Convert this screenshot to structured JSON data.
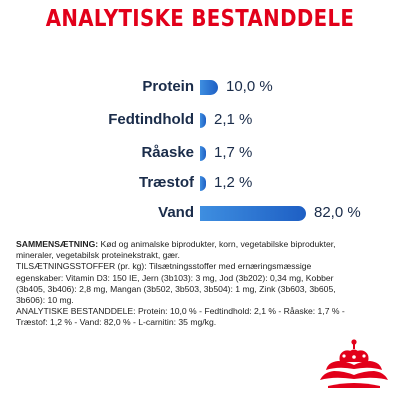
{
  "title": "ANALYTISKE BESTANDDELE",
  "colors": {
    "title": "#e2001a",
    "bar_light": "#3e8ee0",
    "bar_dark": "#1e5fc4",
    "label": "#1a2c4a"
  },
  "nutrients": [
    {
      "name": "Protein",
      "value_text": "10,0 %",
      "value": 10.0
    },
    {
      "name": "Fedtindhold",
      "value_text": "2,1 %",
      "value": 2.1
    },
    {
      "name": "Råaske",
      "value_text": "1,7 %",
      "value": 1.7
    },
    {
      "name": "Træstof",
      "value_text": "1,2 %",
      "value": 1.2
    },
    {
      "name": "Vand",
      "value_text": "82,0 %",
      "value": 82.0
    }
  ],
  "composition": {
    "ingredients_head": "SAMMENSÆTNING:",
    "ingredients_text": " Kød og animalske biprodukter, korn, vegetabilske biprodukter, mineraler, vegetabilsk proteinekstrakt, gær.",
    "additives_text": "TILSÆTNINGSSTOFFER (pr. kg): Tilsætningsstoffer med ernæringsmæssige egenskaber: Vitamin D3: 150 IE, Jern (3b103): 3 mg, Jod (3b202): 0,34 mg, Kobber (3b405, 3b406): 2,8 mg, Mangan (3b502, 3b503, 3b504): 1 mg, Zink (3b603, 3b605, 3b606): 10 mg.",
    "analysis_text": "ANALYTISKE BESTANDDELE: Protein: 10,0 % - Fedtindhold: 2,1 % - Råaske: 1,7 % - Træstof: 1,2 % - Vand: 82,0 % - L-carnitin: 35 mg/kg."
  },
  "logo": {
    "type": "crown-logo"
  }
}
